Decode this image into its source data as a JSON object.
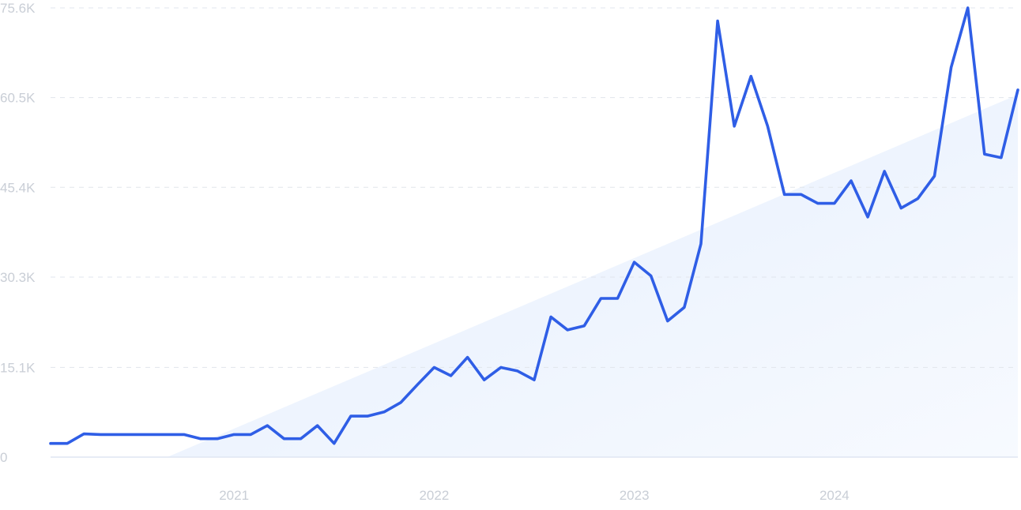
{
  "chart_data": {
    "type": "line",
    "title": "",
    "xlabel": "",
    "ylabel": "",
    "x_tick_labels": [
      "2021",
      "2022",
      "2023",
      "2024"
    ],
    "y_tick_labels": [
      "0",
      "15.1K",
      "30.3K",
      "45.4K",
      "60.5K",
      "75.6K"
    ],
    "y_ticks": [
      0,
      15100,
      30300,
      45400,
      60500,
      75600
    ],
    "ylim": [
      0,
      75600
    ],
    "xlim": [
      "2020-02",
      "2024-12"
    ],
    "grid": true,
    "legend": "none",
    "colors": {
      "line": "#2f5ee6",
      "trend_fill": "#e8f1fd",
      "grid": "#e1e5ec",
      "tick_text": "#c9ced6"
    },
    "series": [
      {
        "x": [
          "2020-02",
          "2020-03",
          "2020-04",
          "2020-05",
          "2020-06",
          "2020-07",
          "2020-08",
          "2020-09",
          "2020-10",
          "2020-11",
          "2020-12",
          "2021-01",
          "2021-02",
          "2021-03",
          "2021-04",
          "2021-05",
          "2021-06",
          "2021-07",
          "2021-08",
          "2021-09",
          "2021-10",
          "2021-11",
          "2021-12",
          "2022-01",
          "2022-02",
          "2022-03",
          "2022-04",
          "2022-05",
          "2022-06",
          "2022-07",
          "2022-08",
          "2022-09",
          "2022-10",
          "2022-11",
          "2022-12",
          "2023-01",
          "2023-02",
          "2023-03",
          "2023-04",
          "2023-05",
          "2023-06",
          "2023-07",
          "2023-08",
          "2023-09",
          "2023-10",
          "2023-11",
          "2023-12",
          "2024-01",
          "2024-02",
          "2024-03",
          "2024-04",
          "2024-05",
          "2024-06",
          "2024-07",
          "2024-08",
          "2024-09",
          "2024-10",
          "2024-11",
          "2024-12"
        ],
        "values": [
          2300,
          2300,
          3900,
          3800,
          3800,
          3800,
          3800,
          3800,
          3800,
          3100,
          3100,
          3800,
          3800,
          5300,
          3100,
          3100,
          5300,
          2300,
          6900,
          6900,
          7600,
          9200,
          12200,
          15100,
          13700,
          16800,
          13000,
          15100,
          14500,
          13000,
          23600,
          21400,
          22100,
          26700,
          26700,
          32800,
          30500,
          22900,
          25200,
          35900,
          73400,
          55700,
          64100,
          55700,
          44200,
          44200,
          42700,
          42700,
          46500,
          40400,
          48100,
          41900,
          43500,
          47300,
          65600,
          75600,
          51000,
          50400,
          61800
        ]
      }
    ],
    "trend_area": {
      "x": [
        "2020-09",
        "2024-12"
      ],
      "values": [
        0,
        61000
      ]
    }
  }
}
